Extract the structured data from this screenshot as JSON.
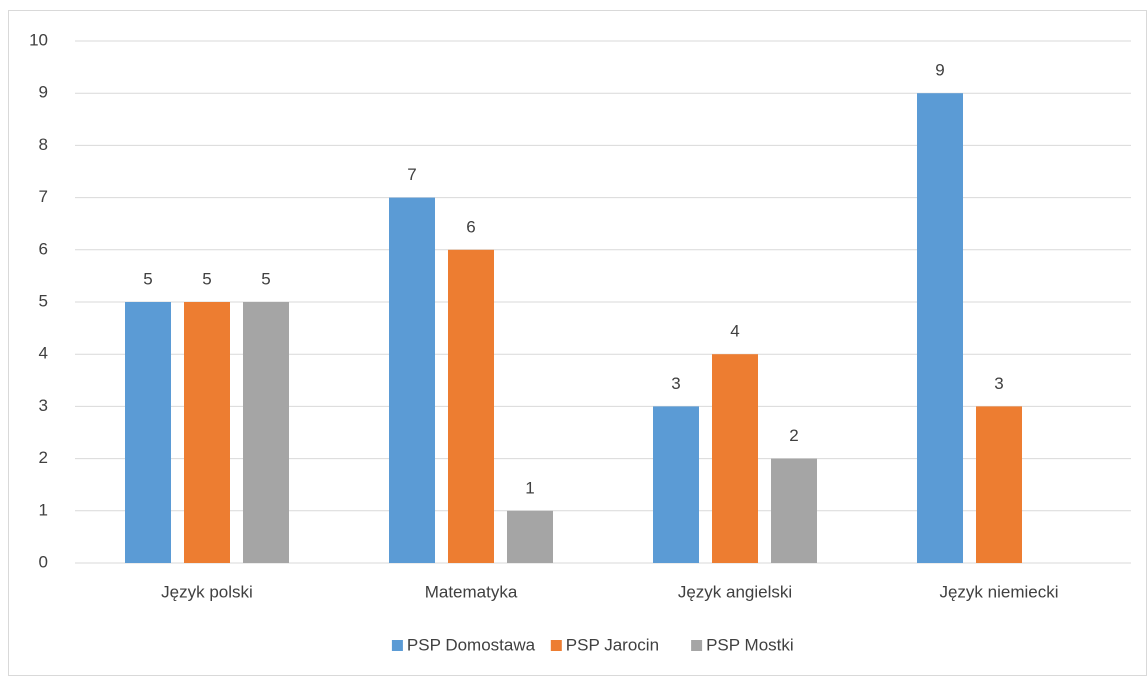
{
  "chart_data": {
    "type": "bar",
    "categories": [
      "Język polski",
      "Matematyka",
      "Język angielski",
      "Język niemiecki"
    ],
    "series": [
      {
        "name": "PSP Domostawa",
        "color": "#5b9bd5",
        "values": [
          5,
          7,
          3,
          9
        ]
      },
      {
        "name": "PSP Jarocin",
        "color": "#ed7d31",
        "values": [
          5,
          6,
          4,
          3
        ]
      },
      {
        "name": "PSP Mostki",
        "color": "#a5a5a5",
        "values": [
          5,
          1,
          2,
          null
        ]
      }
    ],
    "ylim": [
      0,
      10
    ],
    "yticks": [
      0,
      1,
      2,
      3,
      4,
      5,
      6,
      7,
      8,
      9,
      10
    ],
    "grid": true,
    "legend": "bottom",
    "data_labels": true
  }
}
